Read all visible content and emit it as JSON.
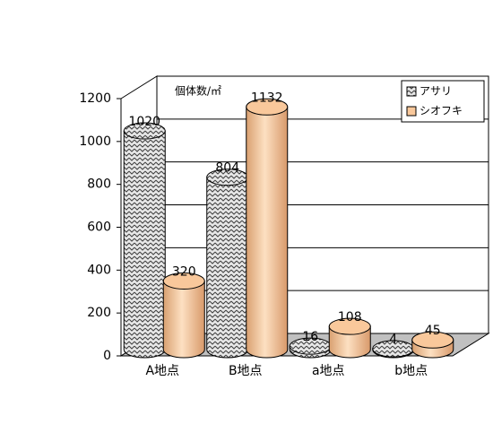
{
  "chart_data": {
    "type": "cylinder-bar",
    "annotation": "個体数/㎡",
    "categories": [
      "A地点",
      "B地点",
      "a地点",
      "b地点"
    ],
    "series": [
      {
        "name": "アサリ",
        "color": "#404040",
        "values": [
          1020,
          804,
          16,
          4
        ]
      },
      {
        "name": "シオフキ",
        "color": "#f9c89b",
        "values": [
          320,
          1132,
          108,
          45
        ]
      }
    ],
    "ylim": [
      0,
      1200
    ],
    "yticks": [
      0,
      200,
      400,
      600,
      800,
      1000,
      1200
    ],
    "grid": true,
    "legend": "top-right"
  }
}
